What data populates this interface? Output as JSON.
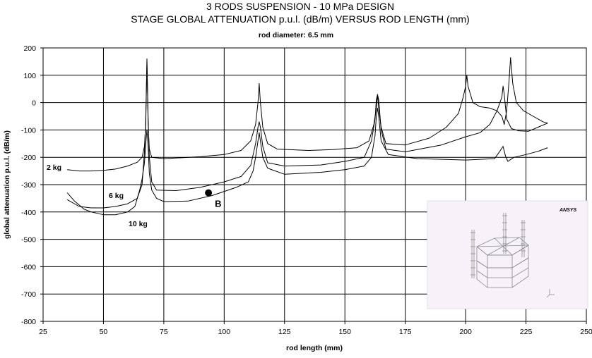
{
  "chart_data": {
    "type": "line",
    "title": "3 RODS SUSPENSION - 10 MPa DESIGN",
    "subtitle": "STAGE GLOBAL ATTENUATION p.u.l. (dB/m) VERSUS ROD LENGTH (mm)",
    "note": "rod diameter: 6.5 mm",
    "xlabel": "rod length (mm)",
    "ylabel": "global attenuation p.u.l. (dB/m)",
    "xlim": [
      25,
      250
    ],
    "ylim": [
      -800,
      200
    ],
    "x_ticks": [
      25,
      50,
      75,
      100,
      125,
      150,
      175,
      200,
      225,
      250
    ],
    "y_ticks": [
      200,
      100,
      0,
      -100,
      -200,
      -300,
      -400,
      -500,
      -600,
      -700,
      -800
    ],
    "grid": true,
    "series": [
      {
        "name": "2 kg",
        "points": [
          [
            35,
            -245
          ],
          [
            40,
            -250
          ],
          [
            45,
            -250
          ],
          [
            50,
            -248
          ],
          [
            55,
            -243
          ],
          [
            60,
            -232
          ],
          [
            64,
            -218
          ],
          [
            66,
            -200
          ],
          [
            67,
            -160
          ],
          [
            67.5,
            -80
          ],
          [
            68,
            160
          ],
          [
            68.5,
            -80
          ],
          [
            69,
            -170
          ],
          [
            70,
            -200
          ],
          [
            75,
            -205
          ],
          [
            90,
            -198
          ],
          [
            100,
            -190
          ],
          [
            107,
            -175
          ],
          [
            111,
            -140
          ],
          [
            113,
            -80
          ],
          [
            114,
            0
          ],
          [
            114.5,
            70
          ],
          [
            115,
            0
          ],
          [
            116,
            -90
          ],
          [
            118,
            -150
          ],
          [
            122,
            -170
          ],
          [
            135,
            -175
          ],
          [
            145,
            -172
          ],
          [
            155,
            -165
          ],
          [
            160,
            -140
          ],
          [
            162,
            -80
          ],
          [
            163,
            -20
          ],
          [
            163.5,
            30
          ],
          [
            164,
            -20
          ],
          [
            165,
            -90
          ],
          [
            167,
            -150
          ],
          [
            175,
            -155
          ],
          [
            185,
            -130
          ],
          [
            192,
            -90
          ],
          [
            197,
            -40
          ],
          [
            199,
            20
          ],
          [
            200,
            60
          ],
          [
            200.5,
            100
          ],
          [
            201,
            60
          ],
          [
            203,
            0
          ],
          [
            206,
            -15
          ],
          [
            210,
            -20
          ],
          [
            213,
            -30
          ],
          [
            215,
            -50
          ],
          [
            216,
            -80
          ],
          [
            217,
            -30
          ],
          [
            218,
            80
          ],
          [
            218.6,
            165
          ],
          [
            219.5,
            70
          ],
          [
            221,
            0
          ],
          [
            224,
            -30
          ],
          [
            228,
            -50
          ],
          [
            232,
            -70
          ],
          [
            234,
            -75
          ]
        ]
      },
      {
        "name": "6 kg",
        "points": [
          [
            35,
            -355
          ],
          [
            40,
            -380
          ],
          [
            45,
            -385
          ],
          [
            50,
            -385
          ],
          [
            55,
            -380
          ],
          [
            60,
            -370
          ],
          [
            64,
            -350
          ],
          [
            66,
            -300
          ],
          [
            67,
            -180
          ],
          [
            67.5,
            -60
          ],
          [
            68,
            150
          ],
          [
            68.5,
            -60
          ],
          [
            69,
            -200
          ],
          [
            70,
            -290
          ],
          [
            72,
            -320
          ],
          [
            80,
            -322
          ],
          [
            90,
            -310
          ],
          [
            100,
            -290
          ],
          [
            107,
            -270
          ],
          [
            111,
            -230
          ],
          [
            113,
            -150
          ],
          [
            114,
            -90
          ],
          [
            114.5,
            -70
          ],
          [
            115,
            -90
          ],
          [
            116,
            -160
          ],
          [
            118,
            -220
          ],
          [
            125,
            -232
          ],
          [
            140,
            -228
          ],
          [
            150,
            -215
          ],
          [
            158,
            -200
          ],
          [
            161,
            -140
          ],
          [
            162.5,
            -60
          ],
          [
            163,
            10
          ],
          [
            163.5,
            30
          ],
          [
            164,
            10
          ],
          [
            165,
            -100
          ],
          [
            167,
            -170
          ],
          [
            175,
            -180
          ],
          [
            190,
            -155
          ],
          [
            200,
            -125
          ],
          [
            206,
            -110
          ],
          [
            210,
            -80
          ],
          [
            213,
            -30
          ],
          [
            215,
            20
          ],
          [
            215.5,
            60
          ],
          [
            216,
            30
          ],
          [
            217,
            -60
          ],
          [
            219,
            -95
          ],
          [
            222,
            -103
          ],
          [
            226,
            -105
          ],
          [
            230,
            -90
          ],
          [
            234,
            -75
          ]
        ]
      },
      {
        "name": "10 kg",
        "points": [
          [
            35,
            -330
          ],
          [
            38,
            -360
          ],
          [
            42,
            -390
          ],
          [
            45,
            -400
          ],
          [
            50,
            -410
          ],
          [
            55,
            -410
          ],
          [
            60,
            -400
          ],
          [
            63,
            -380
          ],
          [
            65,
            -320
          ],
          [
            66,
            -280
          ],
          [
            67,
            -220
          ],
          [
            67.5,
            -150
          ],
          [
            68,
            -100
          ],
          [
            68.5,
            -160
          ],
          [
            69,
            -260
          ],
          [
            70,
            -320
          ],
          [
            72,
            -350
          ],
          [
            75,
            -362
          ],
          [
            85,
            -360
          ],
          [
            95,
            -340
          ],
          [
            105,
            -310
          ],
          [
            110,
            -290
          ],
          [
            112,
            -250
          ],
          [
            113,
            -200
          ],
          [
            114,
            -140
          ],
          [
            114.5,
            -110
          ],
          [
            115,
            -140
          ],
          [
            116,
            -200
          ],
          [
            118,
            -240
          ],
          [
            125,
            -262
          ],
          [
            140,
            -255
          ],
          [
            150,
            -245
          ],
          [
            158,
            -232
          ],
          [
            161,
            -200
          ],
          [
            162.5,
            -120
          ],
          [
            163,
            -50
          ],
          [
            163.5,
            -20
          ],
          [
            164,
            -50
          ],
          [
            165,
            -140
          ],
          [
            168,
            -190
          ],
          [
            180,
            -205
          ],
          [
            200,
            -210
          ],
          [
            212,
            -205
          ],
          [
            214,
            -180
          ],
          [
            215.5,
            -160
          ],
          [
            216.5,
            -195
          ],
          [
            217.5,
            -215
          ],
          [
            220,
            -200
          ],
          [
            225,
            -190
          ],
          [
            230,
            -178
          ],
          [
            234,
            -165
          ]
        ]
      }
    ],
    "annotations": [
      {
        "label": "B",
        "x": 93.5,
        "y": -330
      }
    ]
  },
  "inset": {
    "description": "ANSYS model image",
    "logo_text": "ANSYS"
  }
}
